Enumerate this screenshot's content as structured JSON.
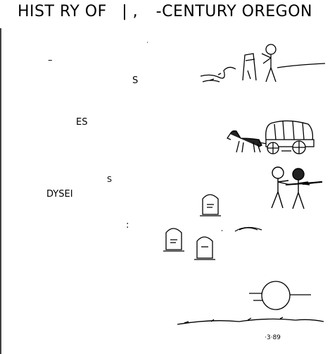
{
  "title": {
    "part1": "HIST RY OF",
    "part2": "| ,",
    "part3": "-CENTURY OREGON"
  },
  "fragments": {
    "dash": "–",
    "s1": "S",
    "es": "ES",
    "s2": "S",
    "dysei": "DYSEI",
    "bracket": ":"
  },
  "signature": "·3·89"
}
